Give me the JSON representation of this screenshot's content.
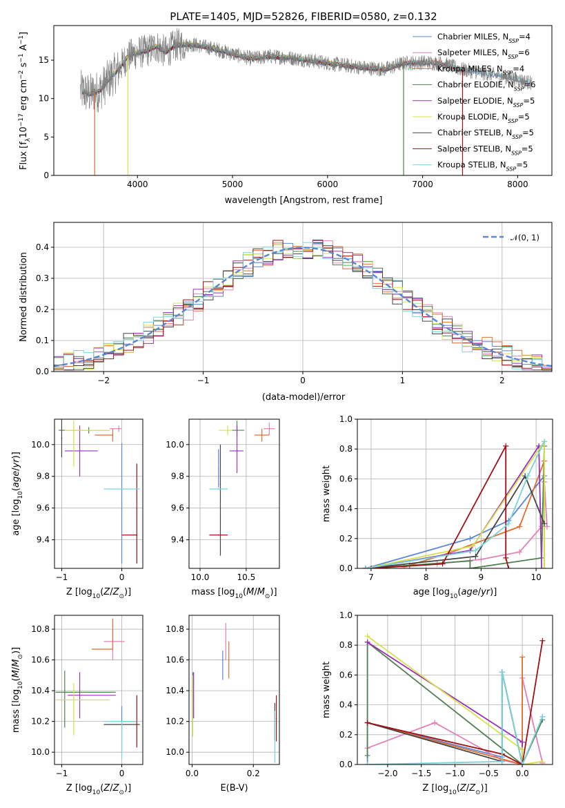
{
  "figure": {
    "title": "PLATE=1405, MJD=52826, FIBERID=0580, z=0.132"
  },
  "series": [
    {
      "name": "Chabrier MILES, N<sub>SSP</sub>=4",
      "label": "Chabrier MILES, N",
      "sub": "SSP",
      "tail": "=4",
      "color": "#5a86d3"
    },
    {
      "name": "Salpeter MILES, N<sub>SSP</sub>=6",
      "label": "Salpeter MILES, N",
      "sub": "SSP",
      "tail": "=6",
      "color": "#e080b8"
    },
    {
      "name": "Kroupa MILES, N<sub>SSP</sub>=4",
      "label": "Kroupa MILES, N",
      "sub": "SSP",
      "tail": "=4",
      "color": "#e06e30"
    },
    {
      "name": "Chabrier ELODIE, N<sub>SSP</sub>=6",
      "label": "Chabrier ELODIE, N",
      "sub": "SSP",
      "tail": "=6",
      "color": "#4f7f50"
    },
    {
      "name": "Salpeter ELODIE, N<sub>SSP</sub>=5",
      "label": "Salpeter ELODIE, N",
      "sub": "SSP",
      "tail": "=5",
      "color": "#9a2fb8"
    },
    {
      "name": "Kroupa ELODIE, N<sub>SSP</sub>=5",
      "label": "Kroupa ELODIE, N",
      "sub": "SSP",
      "tail": "=5",
      "color": "#d6e04a"
    },
    {
      "name": "Chabrier STELIB, N<sub>SSP</sub>=5",
      "label": "Chabrier STELIB, N",
      "sub": "SSP",
      "tail": "=5",
      "color": "#444444"
    },
    {
      "name": "Salpeter STELIB, N<sub>SSP</sub>=5",
      "label": "Salpeter STELIB, N",
      "sub": "SSP",
      "tail": "=5",
      "color": "#a00f14"
    },
    {
      "name": "Kroupa STELIB, N<sub>SSP</sub>=5",
      "label": "Kroupa STELIB, N",
      "sub": "SSP",
      "tail": "=5",
      "color": "#78d4d8"
    }
  ],
  "chart_data": [
    {
      "id": "spectrum",
      "type": "line",
      "title": "PLATE=1405, MJD=52826, FIBERID=0580, z=0.132",
      "xlabel": "wavelength [Angstrom, rest frame]",
      "ylabel": "Flux [f",
      "ylabel_parts": [
        "Flux [f",
        "λ",
        "10",
        "−17",
        " erg cm",
        "−2",
        " s",
        "−1",
        " A",
        "−1",
        "]"
      ],
      "xlim": [
        3120,
        8360
      ],
      "ylim": [
        0,
        19.5
      ],
      "xticks": [
        4000,
        5000,
        6000,
        7000,
        8000
      ],
      "yticks": [
        0,
        5,
        10,
        15
      ],
      "grid": false,
      "legend": "top-right",
      "data_profile": {
        "x": [
          3400,
          3500,
          3600,
          3700,
          3800,
          3900,
          4000,
          4100,
          4200,
          4300,
          4400,
          4600,
          4800,
          5000,
          5200,
          5400,
          5600,
          5800,
          6000,
          6200,
          6400,
          6600,
          6800,
          7000,
          7200,
          7400,
          7600,
          7800,
          8000,
          8150
        ],
        "y": [
          11.0,
          10.6,
          11.0,
          12.5,
          13.8,
          15.5,
          16.0,
          16.2,
          16.8,
          16.0,
          17.0,
          17.0,
          16.5,
          15.8,
          15.2,
          15.5,
          15.3,
          15.0,
          14.6,
          14.3,
          14.0,
          13.8,
          14.6,
          14.7,
          14.6,
          13.8,
          13.4,
          13.0,
          12.5,
          12.0
        ]
      }
    },
    {
      "id": "residuals",
      "type": "line",
      "xlabel": "(data-model)/error",
      "ylabel": "Normed distribution",
      "xlim": [
        -2.5,
        2.5
      ],
      "ylim": [
        0,
        0.48
      ],
      "xticks": [
        -2,
        -1,
        0,
        1,
        2
      ],
      "yticks": [
        0.0,
        0.1,
        0.2,
        0.3,
        0.4
      ],
      "grid": true,
      "legend": "top-right",
      "reference_curve": {
        "name": "N(0,1)",
        "label": "𝒩(0, 1)",
        "mean": 0,
        "sigma": 1
      }
    },
    {
      "id": "age_vs_Z",
      "type": "scatter",
      "xlabel": "Z [log10(Z/Z⊙)]",
      "ylabel": "age [log10(age/yr)]",
      "xlim": [
        -1.12,
        0.35
      ],
      "ylim": [
        9.22,
        10.16
      ],
      "xticks": [
        -1,
        0
      ],
      "yticks": [
        9.4,
        9.6,
        9.8,
        10.0
      ],
      "grid": true,
      "points": [
        {
          "s": 0,
          "x": 0.0,
          "y": 9.63,
          "xerr": [
            0.0,
            0.0
          ],
          "yerr": [
            0.38,
            0.38
          ]
        },
        {
          "s": 1,
          "x": -0.05,
          "y": 10.1,
          "xerr": [
            0.15,
            0.05
          ],
          "yerr": [
            0.02,
            0.02
          ]
        },
        {
          "s": 2,
          "x": -0.15,
          "y": 10.06,
          "xerr": [
            0.3,
            0.0
          ],
          "yerr": [
            0.04,
            0.04
          ]
        },
        {
          "s": 3,
          "x": -0.55,
          "y": 10.09,
          "xerr": [
            0.5,
            0.35
          ],
          "yerr": [
            0.02,
            0.02
          ]
        },
        {
          "s": 4,
          "x": -0.7,
          "y": 9.96,
          "xerr": [
            0.25,
            0.3
          ],
          "yerr": [
            0.16,
            0.16
          ]
        },
        {
          "s": 5,
          "x": -0.8,
          "y": 10.09,
          "xerr": [
            0.15,
            0.6
          ],
          "yerr": [
            0.23,
            0.06
          ]
        },
        {
          "s": 6,
          "x": -1.0,
          "y": 10.04,
          "xerr": [
            0.0,
            0.0
          ],
          "yerr": [
            0.12,
            0.12
          ]
        },
        {
          "s": 7,
          "x": 0.25,
          "y": 9.43,
          "xerr": [
            0.25,
            0.0
          ],
          "yerr": [
            0.18,
            0.45
          ]
        },
        {
          "s": 8,
          "x": 0.0,
          "y": 9.72,
          "xerr": [
            0.3,
            0.3
          ],
          "yerr": [
            0.0,
            0.0
          ]
        }
      ]
    },
    {
      "id": "age_vs_mass",
      "type": "scatter",
      "xlabel": "mass [log10(M/M⊙)]",
      "ylabel": "",
      "xlim": [
        9.88,
        10.86
      ],
      "ylim": [
        9.22,
        10.16
      ],
      "xticks": [
        10.0,
        10.5
      ],
      "yticks": [
        9.4,
        9.6,
        9.8,
        10.0
      ],
      "grid": true,
      "points": [
        {
          "s": 0,
          "x": 10.2,
          "y": 9.85,
          "xerr": [
            0.0,
            0.0
          ],
          "yerr": [
            0.12,
            0.12
          ]
        },
        {
          "s": 1,
          "x": 10.75,
          "y": 10.1,
          "xerr": [
            0.06,
            0.06
          ],
          "yerr": [
            0.04,
            0.04
          ]
        },
        {
          "s": 2,
          "x": 10.67,
          "y": 10.06,
          "xerr": [
            0.08,
            0.08
          ],
          "yerr": [
            0.04,
            0.04
          ]
        },
        {
          "s": 3,
          "x": 10.4,
          "y": 10.09,
          "xerr": [
            0.06,
            0.08
          ],
          "yerr": [
            0.04,
            0.06
          ]
        },
        {
          "s": 4,
          "x": 10.4,
          "y": 9.96,
          "xerr": [
            0.08,
            0.07
          ],
          "yerr": [
            0.14,
            0.16
          ]
        },
        {
          "s": 5,
          "x": 10.3,
          "y": 10.09,
          "xerr": [
            0.1,
            0.05
          ],
          "yerr": [
            0.03,
            0.03
          ]
        },
        {
          "s": 6,
          "x": 10.22,
          "y": 9.75,
          "xerr": [
            0.0,
            0.0
          ],
          "yerr": [
            0.45,
            0.25
          ]
        },
        {
          "s": 7,
          "x": 10.2,
          "y": 9.43,
          "xerr": [
            0.1,
            0.1
          ],
          "yerr": [
            0.0,
            0.0
          ]
        },
        {
          "s": 8,
          "x": 10.2,
          "y": 9.72,
          "xerr": [
            0.1,
            0.1
          ],
          "yerr": [
            0.0,
            0.0
          ]
        }
      ]
    },
    {
      "id": "mass_weight_vs_age",
      "type": "line",
      "xlabel": "age [log10(age/yr)]",
      "ylabel": "mass weight",
      "xlim": [
        6.75,
        10.3
      ],
      "ylim": [
        0,
        1.0
      ],
      "xticks": [
        7,
        8,
        9,
        10
      ],
      "yticks": [
        0.0,
        0.2,
        0.4,
        0.6,
        0.8,
        1.0
      ],
      "grid": true,
      "lines": [
        {
          "s": 0,
          "x": [
            6.9,
            8.8,
            9.5,
            10.15
          ],
          "y": [
            0.0,
            0.2,
            0.32,
            0.62
          ]
        },
        {
          "s": 1,
          "x": [
            6.9,
            8.2,
            9.0,
            9.7,
            10.1,
            10.15,
            10.2
          ],
          "y": [
            0.0,
            0.03,
            0.06,
            0.11,
            0.28,
            0.58,
            0.28
          ]
        },
        {
          "s": 2,
          "x": [
            7.6,
            8.4,
            9.7,
            10.15,
            10.15
          ],
          "y": [
            0.01,
            0.1,
            0.28,
            0.72,
            0.0
          ]
        },
        {
          "s": 3,
          "x": [
            6.9,
            7.7,
            8.8,
            8.8,
            10.1,
            10.15
          ],
          "y": [
            0.0,
            0.02,
            0.05,
            0.0,
            0.07,
            0.82
          ]
        },
        {
          "s": 4,
          "x": [
            6.9,
            8.8,
            10.05,
            10.1
          ],
          "y": [
            0.0,
            0.12,
            0.82,
            0.0
          ]
        },
        {
          "s": 5,
          "x": [
            6.9,
            8.85,
            10.15,
            10.15
          ],
          "y": [
            0.0,
            0.15,
            0.85,
            0.0
          ]
        },
        {
          "s": 6,
          "x": [
            6.9,
            8.9,
            9.8,
            10.15
          ],
          "y": [
            0.0,
            0.08,
            0.62,
            0.3
          ]
        },
        {
          "s": 7,
          "x": [
            7.0,
            8.3,
            9.45,
            9.45,
            9.5
          ],
          "y": [
            0.0,
            0.03,
            0.82,
            0.07,
            0.0
          ]
        },
        {
          "s": 8,
          "x": [
            6.9,
            8.9,
            9.5,
            9.85,
            10.15
          ],
          "y": [
            0.0,
            0.12,
            0.3,
            0.62,
            0.85
          ]
        }
      ]
    },
    {
      "id": "mass_vs_Z",
      "type": "scatter",
      "xlabel": "Z [log10(Z/Z⊙)]",
      "ylabel": "mass [log10(M/M⊙)]",
      "xlim": [
        -1.12,
        0.35
      ],
      "ylim": [
        9.92,
        10.89
      ],
      "xticks": [
        -1,
        0
      ],
      "yticks": [
        10.0,
        10.2,
        10.4,
        10.6,
        10.8
      ],
      "grid": true,
      "points": [
        {
          "s": 0,
          "x": 0.0,
          "y": 10.2,
          "xerr": [
            0.0,
            0.0
          ],
          "yerr": [
            0.2,
            0.1
          ]
        },
        {
          "s": 1,
          "x": -0.15,
          "y": 10.72,
          "xerr": [
            0.15,
            0.2
          ],
          "yerr": [
            0.12,
            0.12
          ]
        },
        {
          "s": 2,
          "x": -0.15,
          "y": 10.67,
          "xerr": [
            0.35,
            0.0
          ],
          "yerr": [
            0.0,
            0.2
          ]
        },
        {
          "s": 3,
          "x": -0.95,
          "y": 10.39,
          "xerr": [
            0.15,
            0.85
          ],
          "yerr": [
            0.23,
            0.14
          ]
        },
        {
          "s": 4,
          "x": -0.7,
          "y": 10.37,
          "xerr": [
            0.2,
            0.6
          ],
          "yerr": [
            0.15,
            0.15
          ]
        },
        {
          "s": 5,
          "x": -0.8,
          "y": 10.34,
          "xerr": [
            0.3,
            0.6
          ],
          "yerr": [
            0.23,
            0.11
          ]
        },
        {
          "s": 6,
          "x": 0.0,
          "y": 10.18,
          "xerr": [
            0.3,
            0.3
          ],
          "yerr": [
            0.0,
            0.0
          ]
        },
        {
          "s": 7,
          "x": 0.25,
          "y": 10.2,
          "xerr": [
            0.25,
            0.0
          ],
          "yerr": [
            0.17,
            0.17
          ]
        },
        {
          "s": 8,
          "x": 0.0,
          "y": 10.2,
          "xerr": [
            0.3,
            0.25
          ],
          "yerr": [
            0.25,
            0.0
          ]
        }
      ]
    },
    {
      "id": "mass_vs_EBV",
      "type": "scatter",
      "xlabel": "E(B-V)",
      "ylabel": "",
      "xlim": [
        -0.01,
        0.285
      ],
      "ylim": [
        9.92,
        10.89
      ],
      "xticks": [
        0.0,
        0.2
      ],
      "yticks": [
        10.0,
        10.2,
        10.4,
        10.6,
        10.8
      ],
      "grid": true,
      "points": [
        {
          "s": 0,
          "x": 0.1,
          "y": 10.6,
          "xerr": [
            0.0,
            0.0
          ],
          "yerr": [
            0.13,
            0.06
          ]
        },
        {
          "s": 1,
          "x": 0.11,
          "y": 10.72,
          "xerr": [
            0.0,
            0.0
          ],
          "yerr": [
            0.12,
            0.12
          ]
        },
        {
          "s": 2,
          "x": 0.12,
          "y": 10.6,
          "xerr": [
            0.0,
            0.0
          ],
          "yerr": [
            0.12,
            0.12
          ]
        },
        {
          "s": 3,
          "x": 0.003,
          "y": 10.4,
          "xerr": [
            0.0,
            0.0
          ],
          "yerr": [
            0.18,
            0.12
          ]
        },
        {
          "s": 4,
          "x": 0.005,
          "y": 10.37,
          "xerr": [
            0.0,
            0.0
          ],
          "yerr": [
            0.15,
            0.15
          ]
        },
        {
          "s": 5,
          "x": 0.002,
          "y": 10.3,
          "xerr": [
            0.0,
            0.0
          ],
          "yerr": [
            0.2,
            0.2
          ]
        },
        {
          "s": 6,
          "x": 0.27,
          "y": 10.2,
          "xerr": [
            0.0,
            0.0
          ],
          "yerr": [
            0.12,
            0.12
          ]
        },
        {
          "s": 7,
          "x": 0.275,
          "y": 10.22,
          "xerr": [
            0.0,
            0.0
          ],
          "yerr": [
            0.15,
            0.15
          ]
        },
        {
          "s": 8,
          "x": 0.27,
          "y": 10.1,
          "xerr": [
            0.0,
            0.0
          ],
          "yerr": [
            0.17,
            0.17
          ]
        }
      ]
    },
    {
      "id": "mass_weight_vs_Z",
      "type": "line",
      "xlabel": "Z [log10(Z/Z⊙)]",
      "ylabel": "mass weight",
      "xlim": [
        -2.45,
        0.45
      ],
      "ylim": [
        0,
        1.0
      ],
      "xticks": [
        -2.0,
        -1.5,
        -1.0,
        -0.5,
        0.0
      ],
      "yticks": [
        0.0,
        0.2,
        0.4,
        0.6,
        0.8,
        1.0
      ],
      "grid": true,
      "lines": [
        {
          "s": 0,
          "x": [
            -2.3,
            -2.3,
            -0.3,
            -0.3,
            0.0,
            0.3
          ],
          "y": [
            0.0,
            0.28,
            0.05,
            0.62,
            0.0,
            0.32
          ]
        },
        {
          "s": 1,
          "x": [
            -2.3,
            -1.3,
            -0.3,
            0.0,
            0.0,
            0.3
          ],
          "y": [
            0.11,
            0.28,
            0.03,
            0.0,
            0.58,
            0.01
          ]
        },
        {
          "s": 2,
          "x": [
            -2.3,
            0.0,
            0.0,
            0.0
          ],
          "y": [
            0.28,
            0.0,
            0.72,
            0.0
          ]
        },
        {
          "s": 3,
          "x": [
            -2.3,
            -2.3,
            0.0,
            0.3
          ],
          "y": [
            0.06,
            0.82,
            0.0,
            0.3
          ]
        },
        {
          "s": 4,
          "x": [
            -2.3,
            0.0,
            0.0
          ],
          "y": [
            0.82,
            0.15,
            0.0
          ]
        },
        {
          "s": 5,
          "x": [
            -2.3,
            0.0,
            0.0,
            0.3
          ],
          "y": [
            0.86,
            0.1,
            0.0,
            0.02
          ]
        },
        {
          "s": 6,
          "x": [
            -2.3,
            -0.3,
            -0.3,
            0.0
          ],
          "y": [
            0.28,
            0.02,
            0.62,
            0.0
          ]
        },
        {
          "s": 7,
          "x": [
            -2.3,
            -0.3,
            0.0,
            0.3
          ],
          "y": [
            0.28,
            0.07,
            0.0,
            0.83
          ]
        },
        {
          "s": 8,
          "x": [
            -2.3,
            -0.3,
            -0.3,
            0.0,
            0.3
          ],
          "y": [
            0.0,
            0.02,
            0.62,
            0.0,
            0.32
          ]
        }
      ]
    }
  ]
}
